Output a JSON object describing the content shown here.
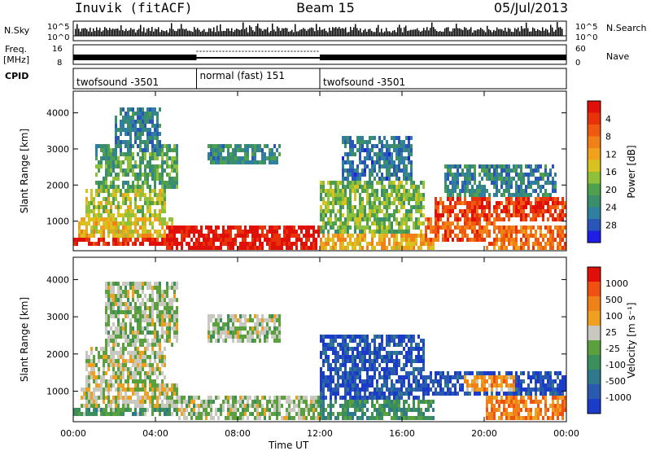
{
  "header": {
    "station": "Inuvik (fitACF)",
    "beam": "Beam 15",
    "date": "05/Jul/2013"
  },
  "top_strip": {
    "nsky_label": "N.Sky",
    "freq_label_1": "Freq.",
    "freq_label_2": "[MHz]",
    "cpid_label": "CPID",
    "nsearch_label": "N.Search",
    "nave_label": "Nave",
    "left_ticks_row1": [
      "10^5",
      "10^0"
    ],
    "left_ticks_row2": [
      "16",
      "8"
    ],
    "right_ticks_row1": [
      "10^5",
      "10^0"
    ],
    "right_ticks_row2": [
      "60",
      "0"
    ]
  },
  "cpid_segments": [
    {
      "start_hour": 0,
      "end_hour": 6,
      "label": "twofsound -3501"
    },
    {
      "start_hour": 6,
      "end_hour": 12,
      "label": "normal (fast) 151"
    },
    {
      "start_hour": 12,
      "end_hour": 24,
      "label": "twofsound -3501"
    }
  ],
  "chart_data": [
    {
      "type": "heatmap",
      "title": "",
      "xlabel": "Time UT",
      "ylabel": "Slant Range [km]",
      "x_ticks": [
        "00:00",
        "04:00",
        "08:00",
        "12:00",
        "16:00",
        "20:00",
        "00:00"
      ],
      "x_tick_hours": [
        0,
        4,
        8,
        12,
        16,
        20,
        24
      ],
      "xlim": [
        0,
        24
      ],
      "y_ticks": [
        1000,
        2000,
        3000,
        4000
      ],
      "ylim": [
        180,
        4600
      ],
      "colorbar": {
        "label": "Power [dB]",
        "ticks": [
          "4",
          "8",
          "12",
          "16",
          "20",
          "24",
          "28"
        ],
        "colors": [
          "#1e1ee6",
          "#2a56b8",
          "#2e7fa0",
          "#3a8f6a",
          "#4fa04c",
          "#8fc03a",
          "#d8c21e",
          "#f0a21c",
          "#f28018",
          "#f05a10",
          "#e8320a",
          "#e01008"
        ]
      },
      "regions": [
        {
          "t0": 0.0,
          "t1": 5.0,
          "r0": 400,
          "r1": 600,
          "level": 0.93
        },
        {
          "t0": 0.2,
          "t1": 4.8,
          "r0": 600,
          "r1": 1200,
          "level": 0.58
        },
        {
          "t0": 0.5,
          "t1": 4.5,
          "r0": 1200,
          "r1": 1900,
          "level": 0.48
        },
        {
          "t0": 1.0,
          "t1": 5.0,
          "r0": 1900,
          "r1": 3200,
          "level": 0.35
        },
        {
          "t0": 2.0,
          "t1": 4.2,
          "r0": 3000,
          "r1": 4200,
          "level": 0.22
        },
        {
          "t0": 4.5,
          "t1": 12.0,
          "r0": 300,
          "r1": 900,
          "level": 0.97
        },
        {
          "t0": 6.5,
          "t1": 10.0,
          "r0": 2600,
          "r1": 3200,
          "level": 0.28
        },
        {
          "t0": 12.0,
          "t1": 17.5,
          "r0": 300,
          "r1": 700,
          "level": 0.62
        },
        {
          "t0": 12.0,
          "t1": 17.0,
          "r0": 700,
          "r1": 2200,
          "level": 0.42
        },
        {
          "t0": 13.0,
          "t1": 16.5,
          "r0": 2200,
          "r1": 3400,
          "level": 0.2
        },
        {
          "t0": 17.0,
          "t1": 20.5,
          "r0": 500,
          "r1": 1200,
          "level": 0.8
        },
        {
          "t0": 17.5,
          "t1": 24.0,
          "r0": 1000,
          "r1": 1700,
          "level": 0.86
        },
        {
          "t0": 20.0,
          "t1": 24.0,
          "r0": 300,
          "r1": 900,
          "level": 0.75
        },
        {
          "t0": 18.0,
          "t1": 23.5,
          "r0": 1700,
          "r1": 2600,
          "level": 0.25
        }
      ]
    },
    {
      "type": "heatmap",
      "title": "",
      "xlabel": "Time UT",
      "ylabel": "Slant Range [km]",
      "x_ticks": [
        "00:00",
        "04:00",
        "08:00",
        "12:00",
        "16:00",
        "20:00",
        "00:00"
      ],
      "x_tick_hours": [
        0,
        4,
        8,
        12,
        16,
        20,
        24
      ],
      "xlim": [
        0,
        24
      ],
      "y_ticks": [
        1000,
        2000,
        3000,
        4000
      ],
      "ylim": [
        180,
        4600
      ],
      "colorbar": {
        "label": "Velocity [m s⁻¹]",
        "ticks": [
          "1000",
          "500",
          "100",
          "25",
          "-25",
          "-100",
          "-500",
          "-1000"
        ],
        "colors": [
          "#1a3cc8",
          "#2a5ab0",
          "#2e7a8c",
          "#3a8f5a",
          "#5aa03c",
          "#c8c8c0",
          "#f0a020",
          "#f08018",
          "#f05010",
          "#e01008"
        ]
      },
      "regions": [
        {
          "t0": 0.0,
          "t1": 5.0,
          "r0": 350,
          "r1": 650,
          "level": 0.4
        },
        {
          "t0": 0.3,
          "t1": 5.0,
          "r0": 650,
          "r1": 1300,
          "level": 0.55
        },
        {
          "t0": 0.5,
          "t1": 4.5,
          "r0": 1300,
          "r1": 2200,
          "level": 0.52
        },
        {
          "t0": 1.5,
          "t1": 5.0,
          "r0": 2200,
          "r1": 4000,
          "level": 0.5
        },
        {
          "t0": 5.0,
          "t1": 12.0,
          "r0": 300,
          "r1": 900,
          "level": 0.5
        },
        {
          "t0": 6.5,
          "t1": 10.0,
          "r0": 2400,
          "r1": 3100,
          "level": 0.5
        },
        {
          "t0": 12.0,
          "t1": 17.5,
          "r0": 300,
          "r1": 800,
          "level": 0.35
        },
        {
          "t0": 12.0,
          "t1": 17.0,
          "r0": 800,
          "r1": 2600,
          "level": 0.12
        },
        {
          "t0": 17.0,
          "t1": 24.0,
          "r0": 900,
          "r1": 1600,
          "level": 0.1
        },
        {
          "t0": 19.0,
          "t1": 21.5,
          "r0": 1000,
          "r1": 1500,
          "level": 0.7
        },
        {
          "t0": 20.0,
          "t1": 24.0,
          "r0": 300,
          "r1": 900,
          "level": 0.75
        }
      ]
    }
  ]
}
